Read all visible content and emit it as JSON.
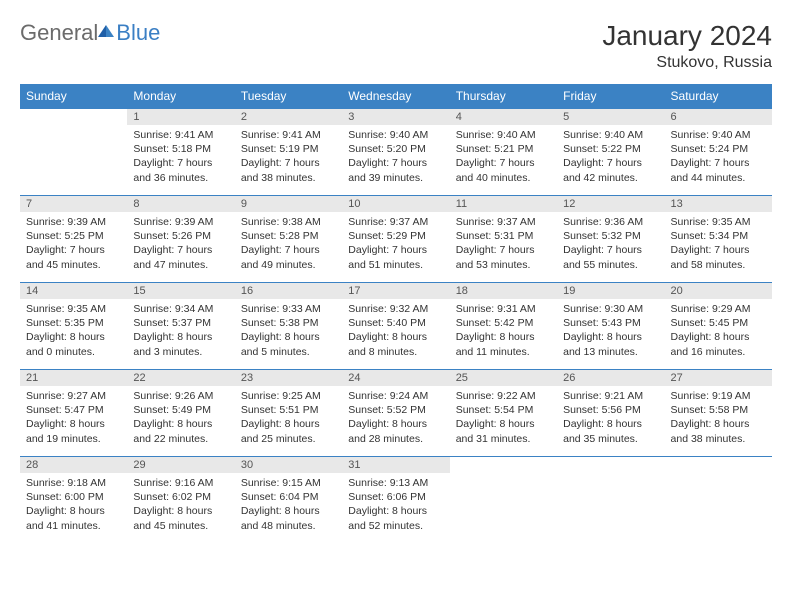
{
  "logo": {
    "general": "General",
    "blue": "Blue"
  },
  "title": "January 2024",
  "location": "Stukovo, Russia",
  "colors": {
    "header_bg": "#3b82c4",
    "header_text": "#ffffff",
    "daynum_bg": "#e8e8e8",
    "border": "#3b82c4",
    "logo_gray": "#6b6b6b",
    "logo_blue": "#3b7fc4"
  },
  "weekdays": [
    "Sunday",
    "Monday",
    "Tuesday",
    "Wednesday",
    "Thursday",
    "Friday",
    "Saturday"
  ],
  "weeks": [
    [
      null,
      {
        "n": "1",
        "sunrise": "Sunrise: 9:41 AM",
        "sunset": "Sunset: 5:18 PM",
        "daylight": "Daylight: 7 hours and 36 minutes."
      },
      {
        "n": "2",
        "sunrise": "Sunrise: 9:41 AM",
        "sunset": "Sunset: 5:19 PM",
        "daylight": "Daylight: 7 hours and 38 minutes."
      },
      {
        "n": "3",
        "sunrise": "Sunrise: 9:40 AM",
        "sunset": "Sunset: 5:20 PM",
        "daylight": "Daylight: 7 hours and 39 minutes."
      },
      {
        "n": "4",
        "sunrise": "Sunrise: 9:40 AM",
        "sunset": "Sunset: 5:21 PM",
        "daylight": "Daylight: 7 hours and 40 minutes."
      },
      {
        "n": "5",
        "sunrise": "Sunrise: 9:40 AM",
        "sunset": "Sunset: 5:22 PM",
        "daylight": "Daylight: 7 hours and 42 minutes."
      },
      {
        "n": "6",
        "sunrise": "Sunrise: 9:40 AM",
        "sunset": "Sunset: 5:24 PM",
        "daylight": "Daylight: 7 hours and 44 minutes."
      }
    ],
    [
      {
        "n": "7",
        "sunrise": "Sunrise: 9:39 AM",
        "sunset": "Sunset: 5:25 PM",
        "daylight": "Daylight: 7 hours and 45 minutes."
      },
      {
        "n": "8",
        "sunrise": "Sunrise: 9:39 AM",
        "sunset": "Sunset: 5:26 PM",
        "daylight": "Daylight: 7 hours and 47 minutes."
      },
      {
        "n": "9",
        "sunrise": "Sunrise: 9:38 AM",
        "sunset": "Sunset: 5:28 PM",
        "daylight": "Daylight: 7 hours and 49 minutes."
      },
      {
        "n": "10",
        "sunrise": "Sunrise: 9:37 AM",
        "sunset": "Sunset: 5:29 PM",
        "daylight": "Daylight: 7 hours and 51 minutes."
      },
      {
        "n": "11",
        "sunrise": "Sunrise: 9:37 AM",
        "sunset": "Sunset: 5:31 PM",
        "daylight": "Daylight: 7 hours and 53 minutes."
      },
      {
        "n": "12",
        "sunrise": "Sunrise: 9:36 AM",
        "sunset": "Sunset: 5:32 PM",
        "daylight": "Daylight: 7 hours and 55 minutes."
      },
      {
        "n": "13",
        "sunrise": "Sunrise: 9:35 AM",
        "sunset": "Sunset: 5:34 PM",
        "daylight": "Daylight: 7 hours and 58 minutes."
      }
    ],
    [
      {
        "n": "14",
        "sunrise": "Sunrise: 9:35 AM",
        "sunset": "Sunset: 5:35 PM",
        "daylight": "Daylight: 8 hours and 0 minutes."
      },
      {
        "n": "15",
        "sunrise": "Sunrise: 9:34 AM",
        "sunset": "Sunset: 5:37 PM",
        "daylight": "Daylight: 8 hours and 3 minutes."
      },
      {
        "n": "16",
        "sunrise": "Sunrise: 9:33 AM",
        "sunset": "Sunset: 5:38 PM",
        "daylight": "Daylight: 8 hours and 5 minutes."
      },
      {
        "n": "17",
        "sunrise": "Sunrise: 9:32 AM",
        "sunset": "Sunset: 5:40 PM",
        "daylight": "Daylight: 8 hours and 8 minutes."
      },
      {
        "n": "18",
        "sunrise": "Sunrise: 9:31 AM",
        "sunset": "Sunset: 5:42 PM",
        "daylight": "Daylight: 8 hours and 11 minutes."
      },
      {
        "n": "19",
        "sunrise": "Sunrise: 9:30 AM",
        "sunset": "Sunset: 5:43 PM",
        "daylight": "Daylight: 8 hours and 13 minutes."
      },
      {
        "n": "20",
        "sunrise": "Sunrise: 9:29 AM",
        "sunset": "Sunset: 5:45 PM",
        "daylight": "Daylight: 8 hours and 16 minutes."
      }
    ],
    [
      {
        "n": "21",
        "sunrise": "Sunrise: 9:27 AM",
        "sunset": "Sunset: 5:47 PM",
        "daylight": "Daylight: 8 hours and 19 minutes."
      },
      {
        "n": "22",
        "sunrise": "Sunrise: 9:26 AM",
        "sunset": "Sunset: 5:49 PM",
        "daylight": "Daylight: 8 hours and 22 minutes."
      },
      {
        "n": "23",
        "sunrise": "Sunrise: 9:25 AM",
        "sunset": "Sunset: 5:51 PM",
        "daylight": "Daylight: 8 hours and 25 minutes."
      },
      {
        "n": "24",
        "sunrise": "Sunrise: 9:24 AM",
        "sunset": "Sunset: 5:52 PM",
        "daylight": "Daylight: 8 hours and 28 minutes."
      },
      {
        "n": "25",
        "sunrise": "Sunrise: 9:22 AM",
        "sunset": "Sunset: 5:54 PM",
        "daylight": "Daylight: 8 hours and 31 minutes."
      },
      {
        "n": "26",
        "sunrise": "Sunrise: 9:21 AM",
        "sunset": "Sunset: 5:56 PM",
        "daylight": "Daylight: 8 hours and 35 minutes."
      },
      {
        "n": "27",
        "sunrise": "Sunrise: 9:19 AM",
        "sunset": "Sunset: 5:58 PM",
        "daylight": "Daylight: 8 hours and 38 minutes."
      }
    ],
    [
      {
        "n": "28",
        "sunrise": "Sunrise: 9:18 AM",
        "sunset": "Sunset: 6:00 PM",
        "daylight": "Daylight: 8 hours and 41 minutes."
      },
      {
        "n": "29",
        "sunrise": "Sunrise: 9:16 AM",
        "sunset": "Sunset: 6:02 PM",
        "daylight": "Daylight: 8 hours and 45 minutes."
      },
      {
        "n": "30",
        "sunrise": "Sunrise: 9:15 AM",
        "sunset": "Sunset: 6:04 PM",
        "daylight": "Daylight: 8 hours and 48 minutes."
      },
      {
        "n": "31",
        "sunrise": "Sunrise: 9:13 AM",
        "sunset": "Sunset: 6:06 PM",
        "daylight": "Daylight: 8 hours and 52 minutes."
      },
      null,
      null,
      null
    ]
  ]
}
